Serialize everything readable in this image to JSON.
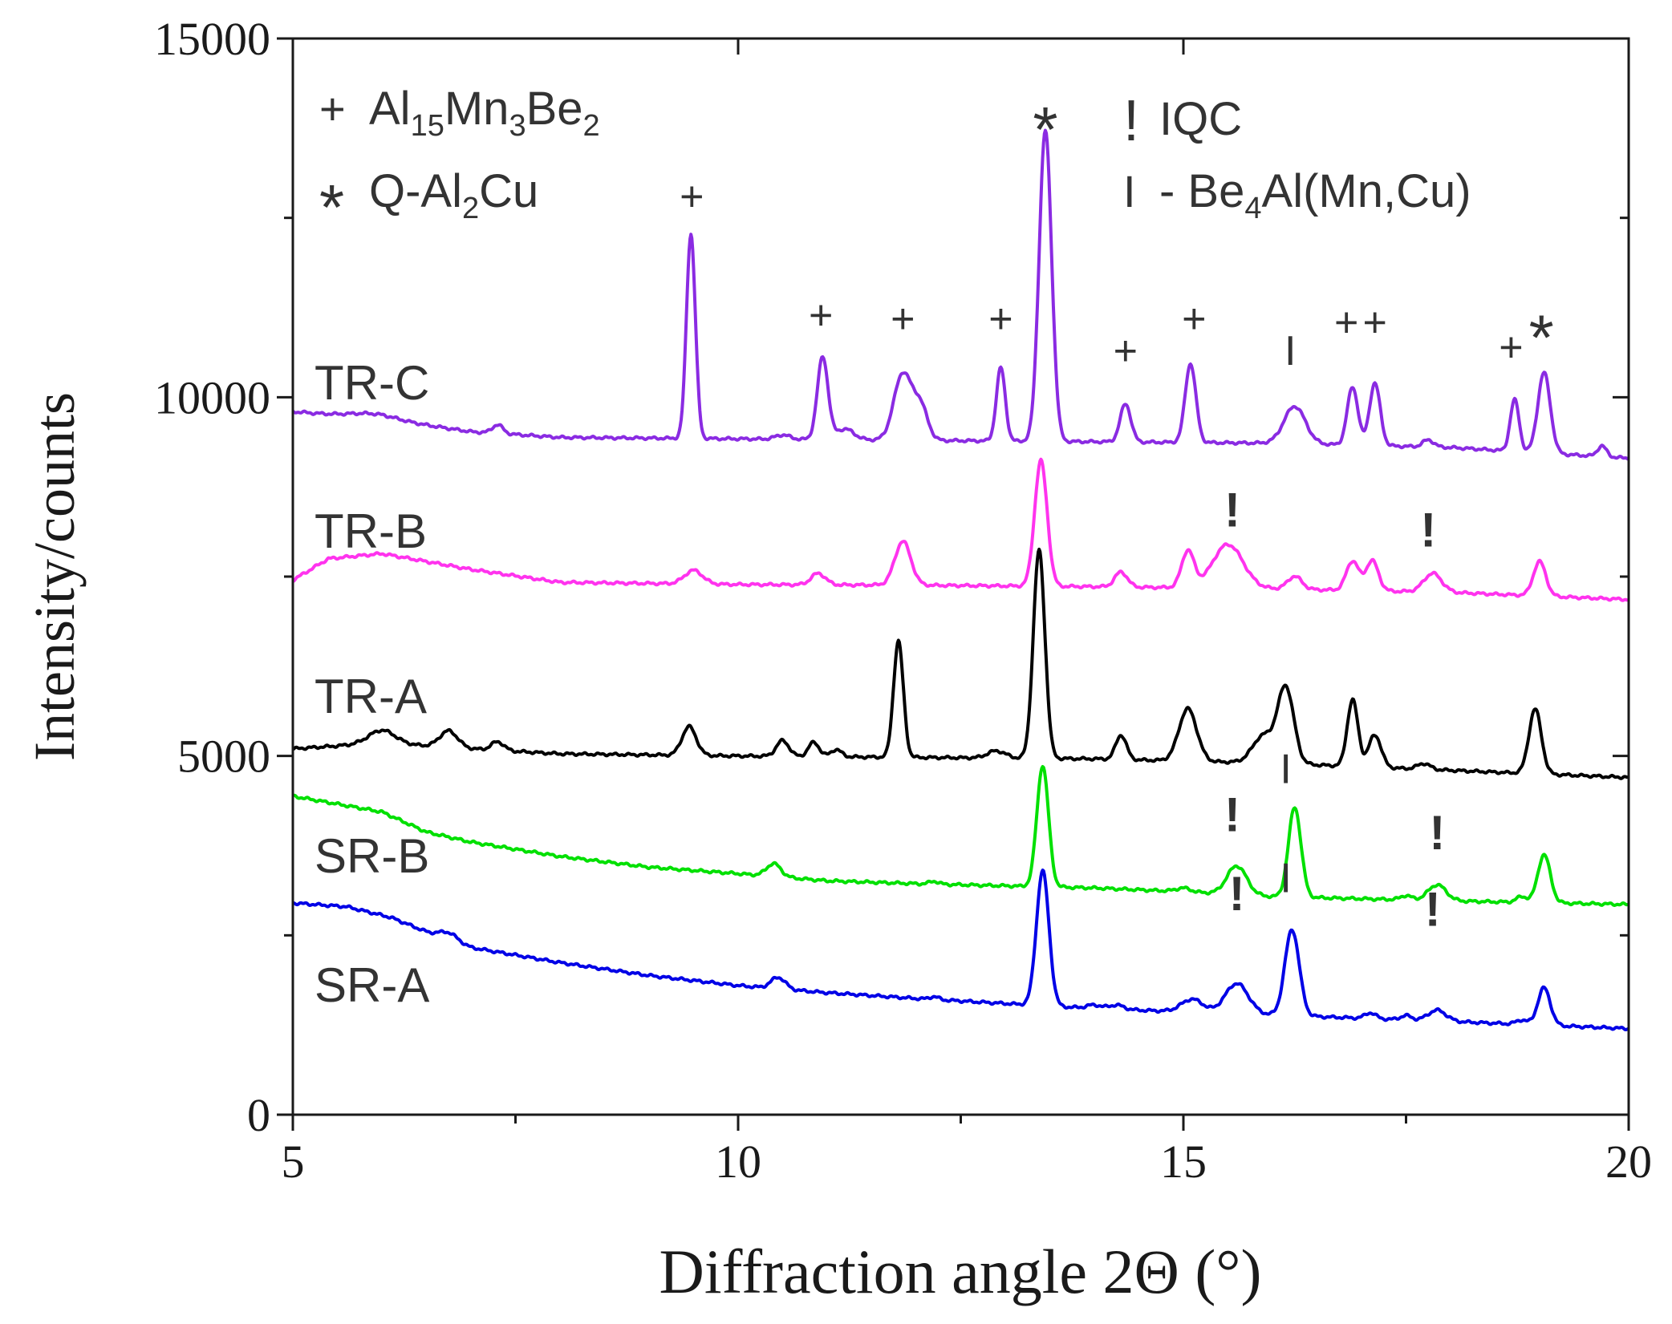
{
  "chart_data": {
    "type": "line",
    "xlabel": "Diffraction angle 2Θ (°)",
    "ylabel": "Intensity/counts",
    "xlim": [
      5,
      20
    ],
    "ylim": [
      0,
      15000
    ],
    "x_ticks": [
      5,
      10,
      15,
      20
    ],
    "y_ticks": [
      0,
      5000,
      10000,
      15000
    ],
    "x_tick_labels": [
      "5",
      "10",
      "15",
      "20"
    ],
    "y_tick_labels": [
      "0",
      "5000",
      "10000",
      "15000"
    ],
    "legend": {
      "items": [
        {
          "symbol": "+",
          "formula": [
            [
              "Al",
              ""
            ],
            [
              "15",
              "sub"
            ],
            [
              "Mn",
              ""
            ],
            [
              "3",
              "sub"
            ],
            [
              "Be",
              ""
            ],
            [
              "2",
              "sub"
            ]
          ]
        },
        {
          "symbol": "*",
          "formula": [
            [
              "Q-Al",
              ""
            ],
            [
              "2",
              "sub"
            ],
            [
              "Cu",
              ""
            ]
          ]
        },
        {
          "symbol": "!",
          "formula": [
            [
              "IQC",
              ""
            ]
          ]
        },
        {
          "symbol": "I",
          "formula": [
            [
              "- Be",
              ""
            ],
            [
              "4",
              "sub"
            ],
            [
              "Al(Mn,Cu)",
              ""
            ]
          ]
        }
      ]
    },
    "series": [
      {
        "name": "TR-C",
        "color": "#8a2be2",
        "baseline": [
          [
            5,
            9800
          ],
          [
            6,
            9700
          ],
          [
            7,
            9520
          ],
          [
            8,
            9440
          ],
          [
            10,
            9420
          ],
          [
            12,
            9400
          ],
          [
            14,
            9380
          ],
          [
            16,
            9360
          ],
          [
            18,
            9300
          ],
          [
            20,
            9150
          ]
        ],
        "bumps": [
          [
            5.9,
            0.25,
            60
          ],
          [
            7.3,
            0.06,
            120
          ],
          [
            9.47,
            0.05,
            2850
          ],
          [
            10.5,
            0.08,
            60
          ],
          [
            10.95,
            0.06,
            1150
          ],
          [
            11.2,
            0.1,
            150
          ],
          [
            11.85,
            0.1,
            930
          ],
          [
            12.05,
            0.08,
            450
          ],
          [
            12.95,
            0.05,
            1020
          ],
          [
            13.45,
            0.07,
            4330
          ],
          [
            14.35,
            0.06,
            530
          ],
          [
            15.08,
            0.06,
            1100
          ],
          [
            16.25,
            0.12,
            520
          ],
          [
            16.9,
            0.06,
            810
          ],
          [
            17.15,
            0.06,
            870
          ],
          [
            17.75,
            0.06,
            100
          ],
          [
            18.72,
            0.05,
            720
          ],
          [
            19.05,
            0.07,
            1120
          ],
          [
            19.7,
            0.05,
            150
          ]
        ]
      },
      {
        "name": "TR-B",
        "color": "#ff33ee",
        "baseline": [
          [
            5,
            7450
          ],
          [
            5.4,
            7750
          ],
          [
            6,
            7820
          ],
          [
            7,
            7600
          ],
          [
            8,
            7420
          ],
          [
            10,
            7390
          ],
          [
            12,
            7380
          ],
          [
            14,
            7360
          ],
          [
            16,
            7330
          ],
          [
            18,
            7280
          ],
          [
            20,
            7180
          ]
        ],
        "bumps": [
          [
            9.5,
            0.1,
            190
          ],
          [
            10.9,
            0.08,
            160
          ],
          [
            11.85,
            0.09,
            610
          ],
          [
            13.4,
            0.07,
            1750
          ],
          [
            14.3,
            0.07,
            210
          ],
          [
            15.05,
            0.07,
            510
          ],
          [
            15.5,
            0.17,
            610
          ],
          [
            16.25,
            0.08,
            180
          ],
          [
            16.9,
            0.07,
            410
          ],
          [
            17.12,
            0.07,
            420
          ],
          [
            17.8,
            0.1,
            260
          ],
          [
            19.0,
            0.07,
            480
          ]
        ]
      },
      {
        "name": "TR-A",
        "color": "#000000",
        "baseline": [
          [
            5,
            5100
          ],
          [
            6,
            5180
          ],
          [
            7,
            5100
          ],
          [
            8,
            5030
          ],
          [
            10,
            5000
          ],
          [
            12,
            4980
          ],
          [
            14,
            4960
          ],
          [
            16,
            4900
          ],
          [
            18,
            4800
          ],
          [
            20,
            4700
          ]
        ],
        "bumps": [
          [
            6.0,
            0.15,
            180
          ],
          [
            6.75,
            0.1,
            230
          ],
          [
            7.3,
            0.07,
            120
          ],
          [
            9.45,
            0.08,
            400
          ],
          [
            10.5,
            0.07,
            220
          ],
          [
            10.85,
            0.06,
            200
          ],
          [
            11.1,
            0.06,
            100
          ],
          [
            11.8,
            0.055,
            1620
          ],
          [
            12.9,
            0.1,
            100
          ],
          [
            13.38,
            0.065,
            2900
          ],
          [
            14.3,
            0.06,
            340
          ],
          [
            15.05,
            0.1,
            730
          ],
          [
            15.9,
            0.12,
            380
          ],
          [
            16.15,
            0.09,
            1050
          ],
          [
            16.9,
            0.06,
            930
          ],
          [
            17.15,
            0.07,
            450
          ],
          [
            17.7,
            0.07,
            80
          ],
          [
            18.95,
            0.07,
            900
          ]
        ]
      },
      {
        "name": "SR-B",
        "color": "#00e000",
        "baseline": [
          [
            5,
            4440
          ],
          [
            6,
            4220
          ],
          [
            6.5,
            3940
          ],
          [
            7,
            3800
          ],
          [
            8,
            3600
          ],
          [
            9,
            3450
          ],
          [
            10,
            3360
          ],
          [
            11,
            3260
          ],
          [
            12,
            3220
          ],
          [
            13,
            3190
          ],
          [
            14,
            3160
          ],
          [
            15,
            3110
          ],
          [
            16,
            3040
          ],
          [
            18,
            2980
          ],
          [
            20,
            2930
          ]
        ],
        "bumps": [
          [
            10.4,
            0.08,
            180
          ],
          [
            12.2,
            0.05,
            40
          ],
          [
            13.42,
            0.065,
            1690
          ],
          [
            15.0,
            0.08,
            50
          ],
          [
            15.6,
            0.11,
            400
          ],
          [
            16.25,
            0.07,
            1250
          ],
          [
            17.5,
            0.06,
            60
          ],
          [
            17.85,
            0.1,
            220
          ],
          [
            18.8,
            0.06,
            80
          ],
          [
            19.05,
            0.07,
            670
          ]
        ]
      },
      {
        "name": "SR-A",
        "color": "#0000e6",
        "baseline": [
          [
            5,
            2950
          ],
          [
            5.6,
            2900
          ],
          [
            6.1,
            2750
          ],
          [
            6.5,
            2550
          ],
          [
            7,
            2330
          ],
          [
            8,
            2120
          ],
          [
            9,
            1940
          ],
          [
            10,
            1800
          ],
          [
            11,
            1700
          ],
          [
            12,
            1620
          ],
          [
            13,
            1550
          ],
          [
            14,
            1480
          ],
          [
            16,
            1390
          ],
          [
            18,
            1300
          ],
          [
            20,
            1200
          ]
        ],
        "bumps": [
          [
            6.75,
            0.1,
            100
          ],
          [
            10.45,
            0.08,
            160
          ],
          [
            12.2,
            0.05,
            40
          ],
          [
            13.42,
            0.07,
            1880
          ],
          [
            14.0,
            0.08,
            50
          ],
          [
            14.25,
            0.08,
            60
          ],
          [
            15.1,
            0.12,
            180
          ],
          [
            15.6,
            0.13,
            420
          ],
          [
            16.22,
            0.08,
            1200
          ],
          [
            17.1,
            0.06,
            80
          ],
          [
            17.5,
            0.06,
            60
          ],
          [
            17.85,
            0.1,
            150
          ],
          [
            18.8,
            0.06,
            60
          ],
          [
            19.05,
            0.07,
            520
          ]
        ]
      }
    ],
    "annotations": [
      {
        "text": "+",
        "x": 9.48,
        "y": 12600
      },
      {
        "text": "+",
        "x": 10.93,
        "y": 10950
      },
      {
        "text": "+",
        "x": 11.85,
        "y": 10900
      },
      {
        "text": "+",
        "x": 12.95,
        "y": 10900
      },
      {
        "text": "*",
        "x": 13.45,
        "y": 13850
      },
      {
        "text": "+",
        "x": 14.35,
        "y": 10450
      },
      {
        "text": "+",
        "x": 15.12,
        "y": 10900
      },
      {
        "text": "I",
        "x": 16.2,
        "y": 10450
      },
      {
        "text": "+",
        "x": 16.83,
        "y": 10850
      },
      {
        "text": "+",
        "x": 17.15,
        "y": 10850
      },
      {
        "text": "+",
        "x": 18.68,
        "y": 10500
      },
      {
        "text": "*",
        "x": 19.02,
        "y": 10950
      },
      {
        "text": "!",
        "x": 15.55,
        "y": 8200
      },
      {
        "text": "!",
        "x": 17.75,
        "y": 7920
      },
      {
        "text": "I",
        "x": 16.15,
        "y": 4620
      },
      {
        "text": "!",
        "x": 15.55,
        "y": 3950
      },
      {
        "text": "!",
        "x": 17.85,
        "y": 3700
      },
      {
        "text": "I",
        "x": 16.15,
        "y": 3100
      },
      {
        "text": "!",
        "x": 15.6,
        "y": 2850
      },
      {
        "text": "!",
        "x": 17.8,
        "y": 2630
      }
    ]
  }
}
